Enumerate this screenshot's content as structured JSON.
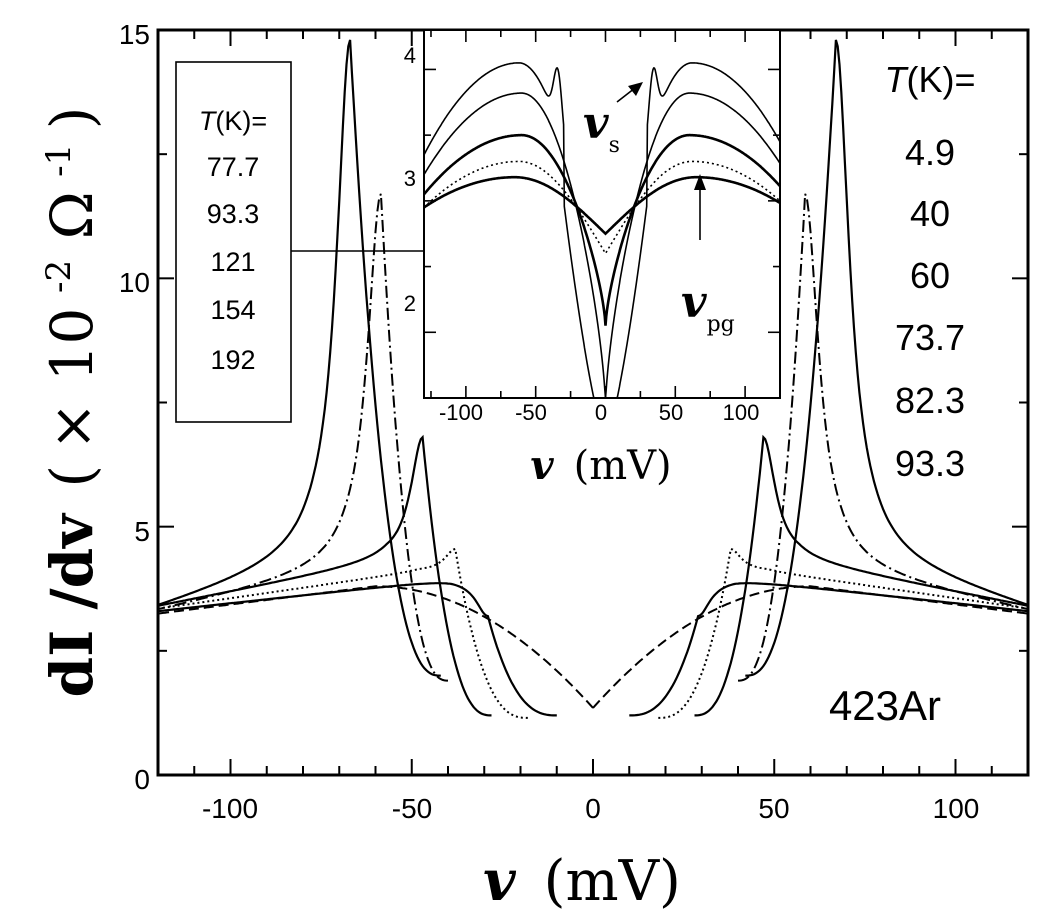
{
  "chart_data": [
    {
      "id": "main",
      "type": "line",
      "sample_label": "423Ar",
      "xlabel_var": "v",
      "xlabel_unit": "(mV)",
      "ylabel_main": "dI /dv",
      "ylabel_paren_open": "(",
      "ylabel_times": "×",
      "ylabel_base": "10",
      "ylabel_exp1": "-2",
      "ylabel_omega": "Ω",
      "ylabel_exp2": "-1",
      "ylabel_paren_close": ")",
      "xlim": [
        -120,
        120
      ],
      "ylim": [
        0,
        15
      ],
      "x_ticks": [
        -100,
        -50,
        0,
        50,
        100
      ],
      "x_tick_labels": [
        "-100",
        "-50",
        "0",
        "50",
        "100"
      ],
      "y_ticks": [
        0,
        5,
        10,
        15
      ],
      "y_tick_labels": [
        "0",
        "5",
        "10",
        "15"
      ],
      "legend_title_var": "T",
      "legend_title_rest": "(K)=",
      "legend_position": "right",
      "legend_values": [
        "4.9",
        "40",
        "60",
        "73.7",
        "82.3",
        "93.3"
      ],
      "series": [
        {
          "T": 4.9,
          "style": "solid",
          "gap": 42,
          "peak": 14.8,
          "peak_x": 67,
          "bg": 4.3,
          "end": 3.35,
          "drop": 2.0,
          "width": 4.5
        },
        {
          "T": 40,
          "style": "dashdot",
          "gap": 40,
          "peak": 11.7,
          "peak_x": 58.5,
          "bg": 4.1,
          "end": 3.3,
          "drop": 1.9,
          "width": 4.5
        },
        {
          "T": 60,
          "style": "solid",
          "gap": 28,
          "peak": 6.8,
          "peak_x": 47,
          "bg": 4.3,
          "end": 3.4,
          "drop": 1.2,
          "width": 4.0
        },
        {
          "T": 73.7,
          "style": "dotted",
          "gap": 18,
          "peak": 4.55,
          "peak_x": 38,
          "bg": 4.1,
          "end": 3.35,
          "drop": 1.15,
          "width": 3.5
        },
        {
          "T": 82.3,
          "style": "solid",
          "gap": 10,
          "peak": 3.2,
          "peak_x": 29,
          "bg": 3.95,
          "end": 3.3,
          "drop": 1.2,
          "width": 0
        },
        {
          "T": 93.3,
          "style": "dashed",
          "gap": 0,
          "peak": 0,
          "peak_x": 0,
          "bg": 3.8,
          "end": 3.25,
          "drop": 1.35,
          "width": 0
        }
      ]
    },
    {
      "id": "inset",
      "type": "line",
      "xlabel_var": "v",
      "xlabel_unit": "(mV)",
      "xlim": [
        -130,
        125
      ],
      "ylim": [
        1.5,
        4.3
      ],
      "x_ticks": [
        -100,
        -50,
        0,
        50,
        100
      ],
      "x_tick_labels": [
        "-100",
        "-50",
        "0",
        "50",
        "100"
      ],
      "y_ticks": [
        2,
        3,
        4
      ],
      "y_tick_labels": [
        "2",
        "3",
        "4"
      ],
      "legend_title_var": "T",
      "legend_title_rest": "(K)=",
      "legend_values": [
        "77.7",
        "93.3",
        "121",
        "154",
        "192"
      ],
      "annotation_vs_var": "v",
      "annotation_vs_sub": "s",
      "annotation_vpg_var": "v",
      "annotation_vpg_sub": "pg",
      "series": [
        {
          "T": 77.7,
          "style": "solid",
          "hump_x": 62,
          "hump": 4.05,
          "center": 1.2,
          "end": 3.35,
          "coh_x": 34,
          "coh": 3.9
        },
        {
          "T": 93.3,
          "style": "solid",
          "hump_x": 60,
          "hump": 3.82,
          "center": 1.45,
          "end": 3.2,
          "coh_x": 0,
          "coh": 0
        },
        {
          "T": 121,
          "style": "solid",
          "hump_x": 60,
          "hump": 3.5,
          "center": 2.05,
          "end": 3.05,
          "coh_x": 0,
          "coh": 0
        },
        {
          "T": 154,
          "style": "dotted",
          "hump_x": 62,
          "hump": 3.3,
          "center": 2.6,
          "end": 2.95,
          "coh_x": 0,
          "coh": 0
        },
        {
          "T": 192,
          "style": "solid",
          "hump_x": 65,
          "hump": 3.18,
          "center": 2.75,
          "end": 2.95,
          "coh_x": 0,
          "coh": 0
        }
      ]
    }
  ]
}
